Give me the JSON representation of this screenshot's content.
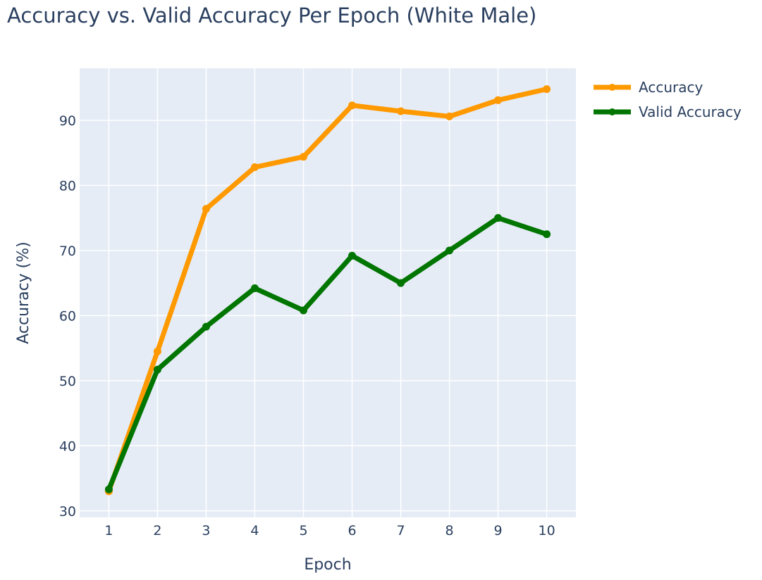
{
  "chart_data": {
    "type": "line",
    "title": "Accuracy vs. Valid Accuracy Per Epoch (White Male)",
    "xlabel": "Epoch",
    "ylabel": "Accuracy (%)",
    "x": [
      1,
      2,
      3,
      4,
      5,
      6,
      7,
      8,
      9,
      10
    ],
    "xlim": [
      0.4,
      10.6
    ],
    "ylim": [
      29,
      98
    ],
    "yticks": [
      30,
      40,
      50,
      60,
      70,
      80,
      90
    ],
    "grid": true,
    "legend_position": "top-right outside",
    "plot_bgcolor": "#e5ecf6",
    "series": [
      {
        "name": "Accuracy",
        "color": "#ff9900",
        "values": [
          33.0,
          54.5,
          76.4,
          82.8,
          84.4,
          92.3,
          91.4,
          90.6,
          93.1,
          94.8
        ]
      },
      {
        "name": "Valid Accuracy",
        "color": "#007500",
        "values": [
          33.3,
          51.7,
          58.3,
          64.2,
          60.8,
          69.2,
          65.0,
          70.0,
          75.0,
          72.5
        ]
      }
    ]
  }
}
